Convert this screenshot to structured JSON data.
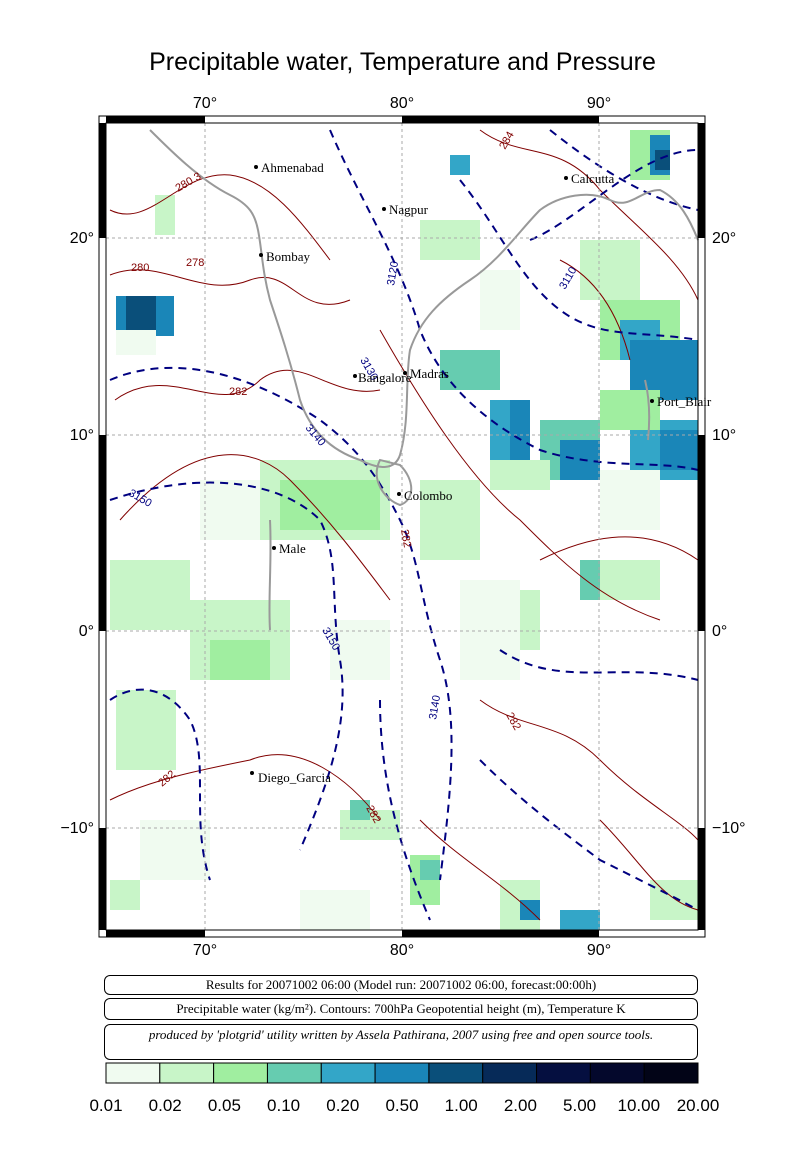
{
  "title": "Precipitable water, Temperature and Pressure",
  "axes": {
    "x_ticks": [
      "70°",
      "80°",
      "90°"
    ],
    "y_ticks": [
      "20°",
      "10°",
      "0°",
      "−10°"
    ]
  },
  "cities": [
    {
      "name": "Ahmenabad"
    },
    {
      "name": "Nagpur"
    },
    {
      "name": "Calcutta"
    },
    {
      "name": "Bombay"
    },
    {
      "name": "Madras"
    },
    {
      "name": "Bangalore"
    },
    {
      "name": "Port_Blair"
    },
    {
      "name": "Colombo"
    },
    {
      "name": "Male"
    },
    {
      "name": "Diego_Garcia"
    }
  ],
  "contour_labels": {
    "height": [
      "3120",
      "3110",
      "3130",
      "3140",
      "3150",
      "3150",
      "3140"
    ],
    "temperature": [
      "280.3",
      "280",
      "278",
      "282",
      "282",
      "282",
      "282",
      "282",
      "284"
    ]
  },
  "info": {
    "results": "Results for 20071002 06:00 (Model run: 20071002 06:00, forecast:00:00h)",
    "variables": "Precipitable water (kg/m²).  Contours: 700hPa Geopotential height (m), Temperature K",
    "credits": "produced by 'plotgrid' utility written by Assela Pathirana, 2007 using free and open source tools."
  },
  "colorbar": {
    "labels": [
      "0.01",
      "0.02",
      "0.05",
      "0.10",
      "0.20",
      "0.50",
      "1.00",
      "2.00",
      "5.00",
      "10.00",
      "20.00"
    ],
    "colors": [
      "#f0fbf0",
      "#c8f5c8",
      "#a0eea0",
      "#66ccb0",
      "#33a6c8",
      "#1a86b8",
      "#0a4f7a",
      "#062a58",
      "#050f40",
      "#04082c",
      "#020417"
    ]
  },
  "colors": {
    "height_contour": "#000080",
    "temperature_contour": "#800000",
    "coastline": "#999999"
  }
}
